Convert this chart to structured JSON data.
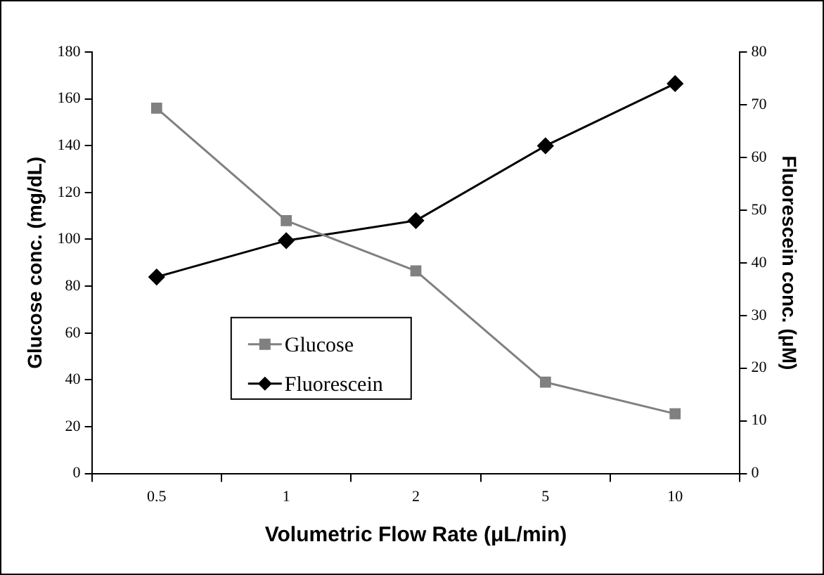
{
  "chart_data": {
    "type": "line",
    "xlabel": "Volumetric Flow Rate (μL/min)",
    "ylabel": "Glucose conc. (mg/dL)",
    "y2label": "Fluorescein conc. (μM)",
    "categories": [
      "0.5",
      "1",
      "2",
      "5",
      "10"
    ],
    "series": [
      {
        "name": "Glucose",
        "color": "#808080",
        "marker": "square",
        "values": [
          156,
          108,
          86.5,
          39,
          25.5
        ]
      },
      {
        "name": "Fluorescein",
        "color": "#000000",
        "marker": "diamond",
        "axis": "y2",
        "values": [
          37.3,
          44.2,
          48,
          62.2,
          74
        ]
      }
    ],
    "ylim": [
      0,
      180
    ],
    "yticks": [
      0,
      20,
      40,
      60,
      80,
      100,
      120,
      140,
      160,
      180
    ],
    "y2lim": [
      0,
      80
    ],
    "y2ticks": [
      0,
      10,
      20,
      30,
      40,
      50,
      60,
      70,
      80
    ],
    "grid": false,
    "legend": "bottom left",
    "line_style": "solid"
  }
}
